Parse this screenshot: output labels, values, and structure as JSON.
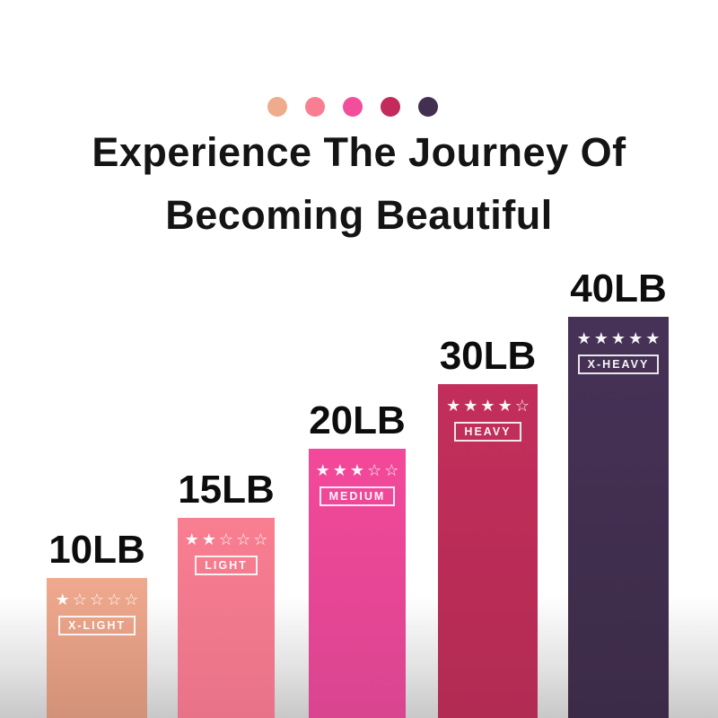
{
  "palette_dots": {
    "colors": [
      "#EFAC8C",
      "#F97E91",
      "#F24E9B",
      "#C22B5B",
      "#433050"
    ]
  },
  "title": {
    "line1": "Experience The Journey Of",
    "line2": "Becoming Beautiful"
  },
  "chart_data": {
    "type": "bar",
    "title": "Experience The Journey Of Becoming Beautiful",
    "categories": [
      "10LB",
      "15LB",
      "20LB",
      "30LB",
      "40LB"
    ],
    "values": [
      10,
      15,
      20,
      30,
      40
    ],
    "unit": "LB",
    "legend_position": "none",
    "grid": false,
    "bars": [
      {
        "label": "10LB",
        "weight": 10,
        "rating": 1,
        "rating_max": 5,
        "stars_display": "★☆☆☆☆",
        "level": "X-LIGHT",
        "colors": [
          "#F0A98E",
          "#D29179"
        ]
      },
      {
        "label": "15LB",
        "weight": 15,
        "rating": 2,
        "rating_max": 5,
        "stars_display": "★★☆☆☆",
        "level": "LIGHT",
        "colors": [
          "#F97E91",
          "#E87389"
        ]
      },
      {
        "label": "20LB",
        "weight": 20,
        "rating": 3,
        "rating_max": 5,
        "stars_display": "★★★☆☆",
        "level": "MEDIUM",
        "colors": [
          "#F4489B",
          "#D94590"
        ]
      },
      {
        "label": "30LB",
        "weight": 30,
        "rating": 4,
        "rating_max": 5,
        "stars_display": "★★★★☆",
        "level": "HEAVY",
        "colors": [
          "#C32E5C",
          "#B22B53"
        ]
      },
      {
        "label": "40LB",
        "weight": 40,
        "rating": 5,
        "rating_max": 5,
        "stars_display": "★★★★★",
        "level": "X-HEAVY",
        "colors": [
          "#473257",
          "#3C2B48"
        ]
      }
    ]
  }
}
